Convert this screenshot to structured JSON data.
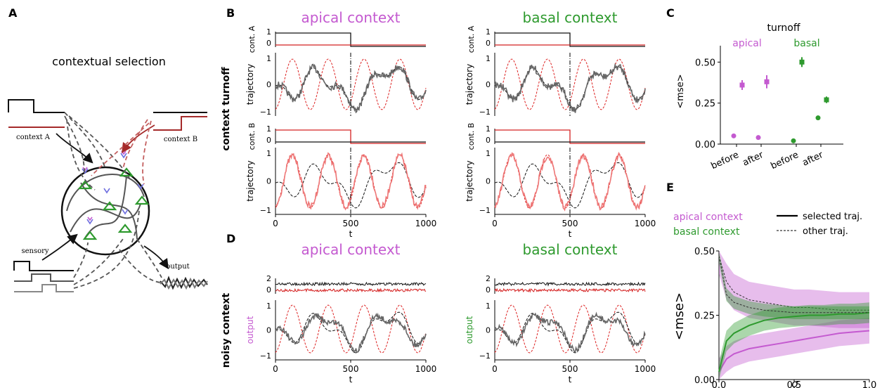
{
  "panels": {
    "A": "A",
    "B": "B",
    "C": "C",
    "D": "D",
    "E": "E"
  },
  "colors": {
    "apical": "#c45ad0",
    "basal": "#2e9a2e",
    "contextA": "#111111",
    "contextB": "#d42020",
    "dashed": "#dd2222",
    "traj": "#666666",
    "trajB": "#ee7777"
  },
  "panelA": {
    "title": "contextual selection",
    "context_a": "context A",
    "context_b": "context B",
    "sensory": "sensory",
    "output": "output"
  },
  "panelB": {
    "row_label": "context turnoff",
    "apical_title": "apical context",
    "basal_title": "basal context",
    "cont_a_label": "cont. A",
    "cont_b_label": "cont. B",
    "traj_label": "trajectory",
    "ctx_yticks": [
      "1",
      "0"
    ],
    "traj_yticks": [
      "1",
      "0",
      "−1"
    ],
    "xticks": [
      "0",
      "500",
      "1000"
    ],
    "xlabel": "t"
  },
  "panelC": {
    "title": "turnoff",
    "apical": "apical",
    "basal": "basal",
    "ylabel": "<mse>",
    "yticks": [
      "0.50",
      "0.25",
      "0.00"
    ],
    "xticks": [
      "before",
      "after",
      "before",
      "after"
    ],
    "chart_data": {
      "type": "scatter",
      "categories": [
        "before",
        "after",
        "before",
        "after"
      ],
      "series": [
        {
          "name": "apical",
          "group": "selected",
          "values": [
            0.36,
            0.38
          ],
          "err": [
            0.03,
            0.04
          ]
        },
        {
          "name": "apical",
          "group": "other",
          "values": [
            0.05,
            0.04
          ],
          "err": [
            0,
            0
          ]
        },
        {
          "name": "basal",
          "group": "selected",
          "values": [
            0.5,
            0.27
          ],
          "err": [
            0.03,
            0.02
          ]
        },
        {
          "name": "basal",
          "group": "other",
          "values": [
            0.02,
            0.16
          ],
          "err": [
            0,
            0
          ]
        }
      ],
      "ylim": [
        0,
        0.6
      ]
    }
  },
  "panelD": {
    "row_label": "noisy context",
    "apical_title": "apical context",
    "basal_title": "basal context",
    "out_label": "output",
    "ctx_yticks": [
      "2",
      "0"
    ],
    "traj_yticks": [
      "1",
      "0",
      "−1"
    ],
    "xticks": [
      "0",
      "500",
      "1000"
    ],
    "xlabel": "t"
  },
  "panelE": {
    "legend_apical": "apical context",
    "legend_basal": "basal context",
    "legend_selected": "selected traj.",
    "legend_other": "other traj.",
    "ylabel": "<mse>",
    "yticks": [
      "0.50",
      "0.25",
      "0.00"
    ],
    "xticks": [
      "0.0",
      "0.5",
      "1.0"
    ],
    "xlabel": "σ",
    "chart_data": {
      "type": "line",
      "x": [
        0.0,
        0.05,
        0.1,
        0.2,
        0.3,
        0.4,
        0.5,
        0.6,
        0.7,
        0.8,
        0.9,
        1.0
      ],
      "series": [
        {
          "name": "apical context",
          "style": "selected",
          "values": [
            0.03,
            0.08,
            0.1,
            0.12,
            0.13,
            0.14,
            0.15,
            0.16,
            0.17,
            0.18,
            0.185,
            0.19
          ]
        },
        {
          "name": "apical context",
          "style": "other",
          "values": [
            0.48,
            0.38,
            0.34,
            0.31,
            0.3,
            0.29,
            0.28,
            0.28,
            0.275,
            0.27,
            0.27,
            0.27
          ]
        },
        {
          "name": "basal context",
          "style": "selected",
          "values": [
            0.03,
            0.15,
            0.18,
            0.21,
            0.23,
            0.24,
            0.245,
            0.25,
            0.25,
            0.255,
            0.255,
            0.26
          ]
        },
        {
          "name": "basal context",
          "style": "other",
          "values": [
            0.48,
            0.33,
            0.3,
            0.28,
            0.27,
            0.265,
            0.26,
            0.26,
            0.26,
            0.26,
            0.26,
            0.26
          ]
        }
      ],
      "xlim": [
        0,
        1
      ],
      "ylim": [
        0,
        0.5
      ]
    }
  }
}
